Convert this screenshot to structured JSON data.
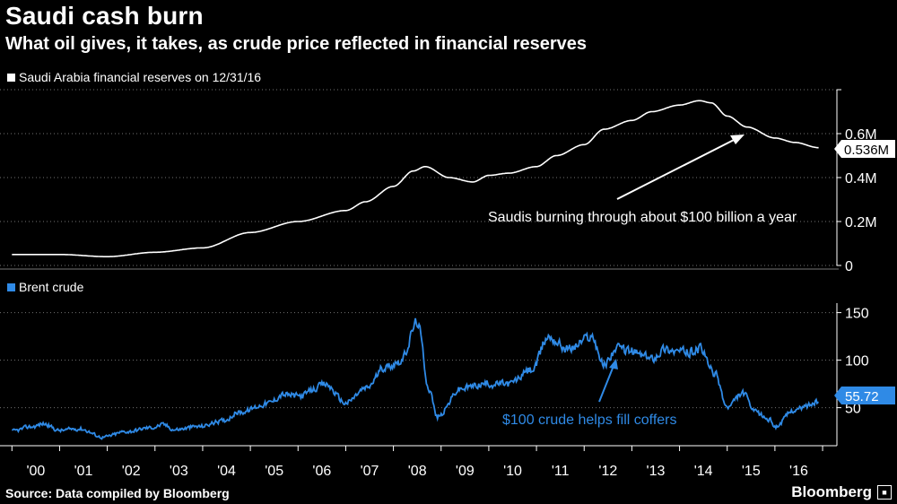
{
  "header": {
    "title": "Saudi cash burn",
    "subtitle": "What oil gives, it takes, as crude price reflected in financial reserves"
  },
  "footer": {
    "source": "Source: Data compiled by Bloomberg",
    "brand": "Bloomberg"
  },
  "colors": {
    "background": "#000000",
    "reserves_line": "#ffffff",
    "brent_line": "#2f8ae6",
    "grid": "#ffffff"
  },
  "chart_data": [
    {
      "type": "line",
      "legend": "Saudi Arabia financial reserves on 12/31/16",
      "series": [
        {
          "name": "Saudi Arabia financial reserves on 12/31/16",
          "x": [
            "2000-01",
            "2001-01",
            "2002-01",
            "2003-01",
            "2004-01",
            "2005-01",
            "2006-01",
            "2007-01",
            "2007-06",
            "2008-01",
            "2008-06",
            "2008-09",
            "2009-03",
            "2009-09",
            "2010-01",
            "2010-06",
            "2011-01",
            "2011-06",
            "2012-01",
            "2012-06",
            "2013-01",
            "2013-06",
            "2014-01",
            "2014-06",
            "2014-09",
            "2015-01",
            "2015-06",
            "2016-01",
            "2016-06",
            "2016-12"
          ],
          "values": [
            0.05,
            0.05,
            0.04,
            0.06,
            0.08,
            0.15,
            0.2,
            0.25,
            0.29,
            0.36,
            0.43,
            0.45,
            0.4,
            0.38,
            0.41,
            0.42,
            0.45,
            0.5,
            0.55,
            0.62,
            0.66,
            0.7,
            0.73,
            0.75,
            0.74,
            0.68,
            0.63,
            0.58,
            0.56,
            0.536
          ]
        }
      ],
      "y_ticks": [
        "0",
        "0.2M",
        "0.4M",
        "0.6M"
      ],
      "ylim": [
        0,
        0.8
      ],
      "last_value_label": "0.536M",
      "annotation": "Saudis burning through about $100 billion a year",
      "grid": "horizontal dotted"
    },
    {
      "type": "line",
      "legend": "Brent crude",
      "series": [
        {
          "name": "Brent crude",
          "x": [
            "2000-01",
            "2000-06",
            "2000-09",
            "2001-01",
            "2001-06",
            "2001-12",
            "2002-06",
            "2002-12",
            "2003-03",
            "2003-06",
            "2003-12",
            "2004-06",
            "2004-10",
            "2005-06",
            "2005-09",
            "2006-01",
            "2006-08",
            "2007-01",
            "2007-06",
            "2007-11",
            "2008-03",
            "2008-07",
            "2008-10",
            "2008-12",
            "2009-06",
            "2009-12",
            "2010-06",
            "2010-12",
            "2011-04",
            "2011-09",
            "2012-03",
            "2012-06",
            "2012-09",
            "2012-12",
            "2013-06",
            "2013-09",
            "2014-03",
            "2014-06",
            "2014-10",
            "2015-01",
            "2015-05",
            "2015-08",
            "2015-12",
            "2016-01",
            "2016-06",
            "2016-12"
          ],
          "values": [
            25,
            30,
            33,
            26,
            28,
            19,
            25,
            29,
            32,
            27,
            30,
            36,
            45,
            55,
            64,
            62,
            74,
            55,
            70,
            93,
            100,
            140,
            70,
            40,
            70,
            75,
            75,
            90,
            125,
            112,
            125,
            95,
            112,
            110,
            102,
            112,
            108,
            112,
            85,
            50,
            65,
            45,
            37,
            30,
            48,
            55.72
          ]
        }
      ],
      "y_ticks": [
        "50",
        "100",
        "150"
      ],
      "ylim": [
        10,
        160
      ],
      "last_value_label": "55.72",
      "annotation": "$100 crude helps fill coffers",
      "grid": "horizontal dotted"
    }
  ],
  "x_axis": {
    "tick_labels": [
      "'00",
      "'01",
      "'02",
      "'03",
      "'04",
      "'05",
      "'06",
      "'07",
      "'08",
      "'09",
      "'10",
      "'11",
      "'12",
      "'13",
      "'14",
      "'15",
      "'16"
    ]
  }
}
